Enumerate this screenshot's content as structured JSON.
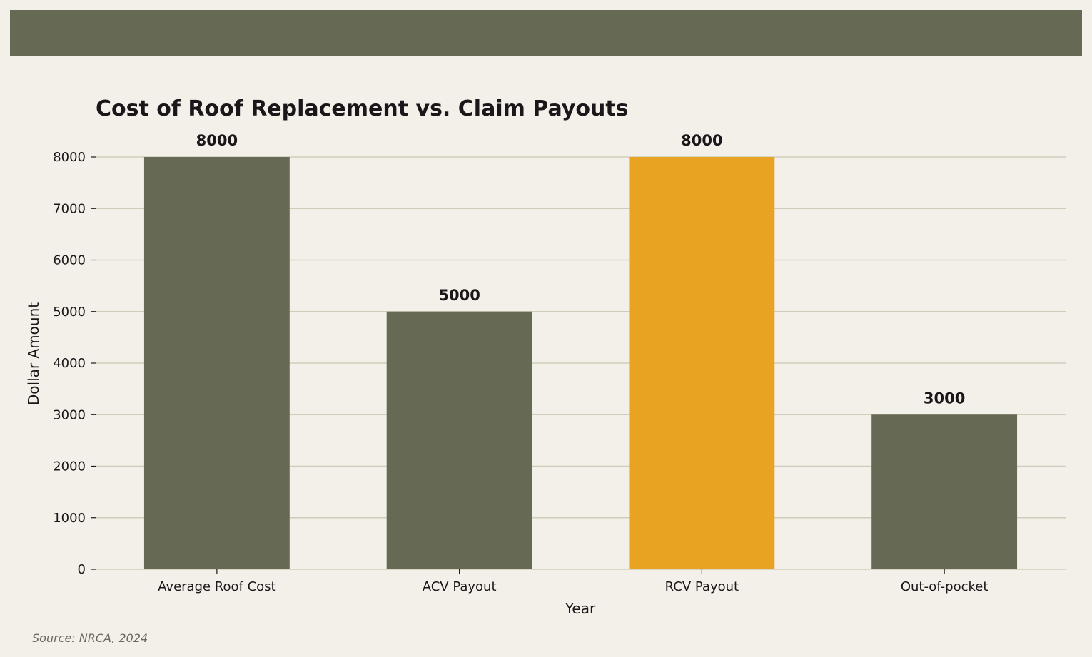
{
  "colors": {
    "background": "#f2f0e9",
    "band": "#666a55",
    "bar_default": "#666a55",
    "bar_highlight": "#e8a323",
    "grid": "#cfcdb9",
    "text": "#1a1619",
    "source": "#6b6a5c"
  },
  "chart_data": {
    "type": "bar",
    "title": "Cost of Roof Replacement vs. Claim Payouts",
    "xlabel": "Year",
    "ylabel": "Dollar Amount",
    "categories": [
      "Average Roof Cost",
      "ACV Payout",
      "RCV Payout",
      "Out-of-pocket"
    ],
    "values": [
      8000,
      5000,
      8000,
      3000
    ],
    "highlight_index": 2,
    "ylim": [
      0,
      8000
    ],
    "yticks": [
      0,
      1000,
      2000,
      3000,
      4000,
      5000,
      6000,
      7000,
      8000
    ],
    "grid": "horizontal",
    "data_labels": true
  },
  "source": "Source: NRCA, 2024"
}
